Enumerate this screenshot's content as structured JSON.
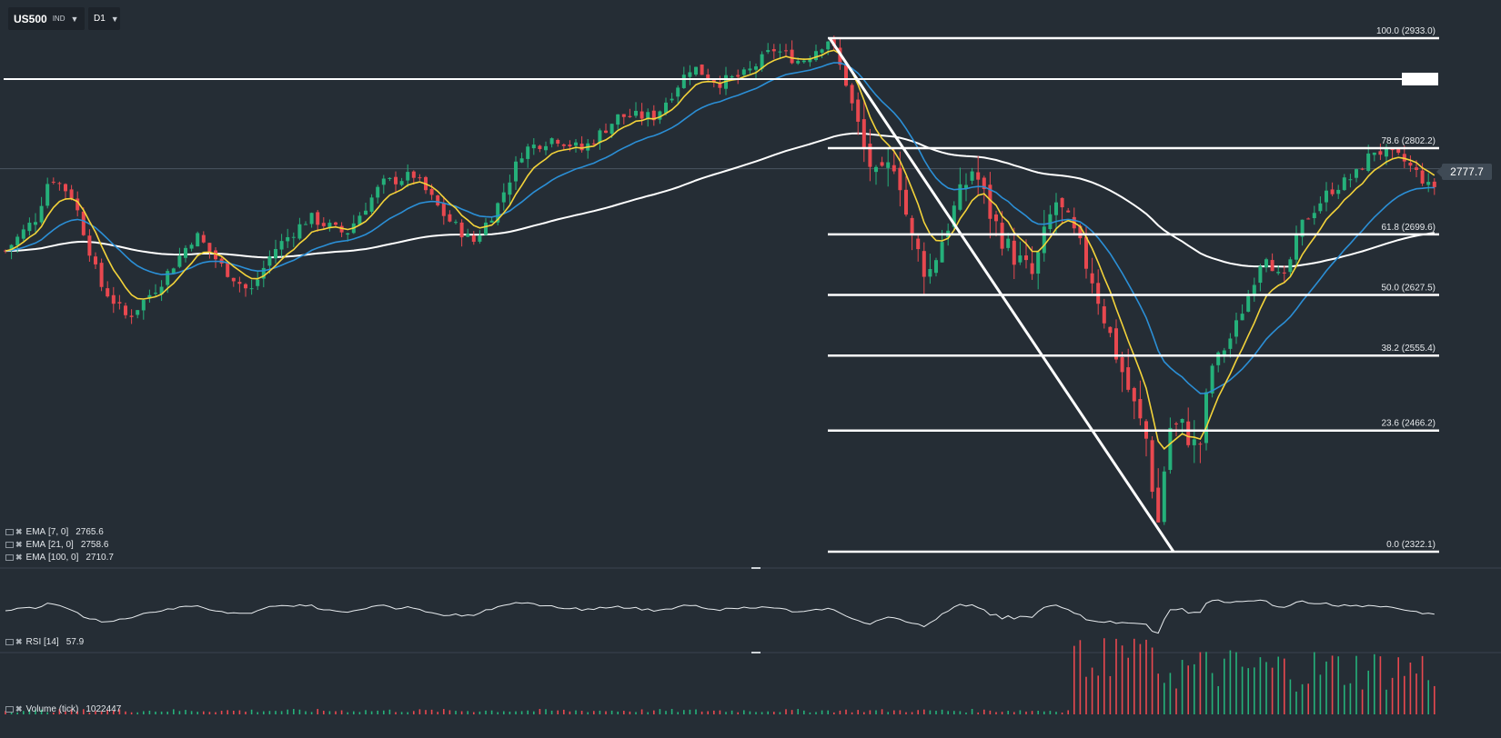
{
  "toolbar": {
    "symbol": "US500",
    "instrument_type": "IND",
    "timeframe": "D1"
  },
  "price": {
    "current": "2777.7"
  },
  "fibonacci": {
    "levels": [
      {
        "label": "100.0 (2933.0)",
        "value": 2933.0
      },
      {
        "label": "78.6 (2802.2)",
        "value": 2802.2
      },
      {
        "label": "61.8 (2699.6)",
        "value": 2699.6
      },
      {
        "label": "50.0 (2627.5)",
        "value": 2627.5
      },
      {
        "label": "38.2 (2555.4)",
        "value": 2555.4
      },
      {
        "label": "23.6 (2466.2)",
        "value": 2466.2
      },
      {
        "label": "0.0 (2322.1)",
        "value": 2322.1
      }
    ]
  },
  "indicators": {
    "ema7": {
      "name": "EMA",
      "params": "[7, 0]",
      "value": "2765.6",
      "color": "#f3d33a"
    },
    "ema21": {
      "name": "EMA",
      "params": "[21, 0]",
      "value": "2758.6",
      "color": "#2b8fd6"
    },
    "ema100": {
      "name": "EMA",
      "params": "[100, 0]",
      "value": "2710.7",
      "color": "#ffffff"
    },
    "rsi": {
      "name": "RSI",
      "params": "[14]",
      "value": "57.9"
    },
    "volume": {
      "name": "Volume",
      "params": "(tick)",
      "value": "1022447"
    }
  },
  "colors": {
    "background": "#252d35",
    "bull_candle": "#25b07a",
    "bear_candle": "#e8484f",
    "line": "#ffffff"
  },
  "icons": [
    "dropdown-caret-icon",
    "indicator-settings-icon",
    "indicator-remove-icon"
  ]
}
